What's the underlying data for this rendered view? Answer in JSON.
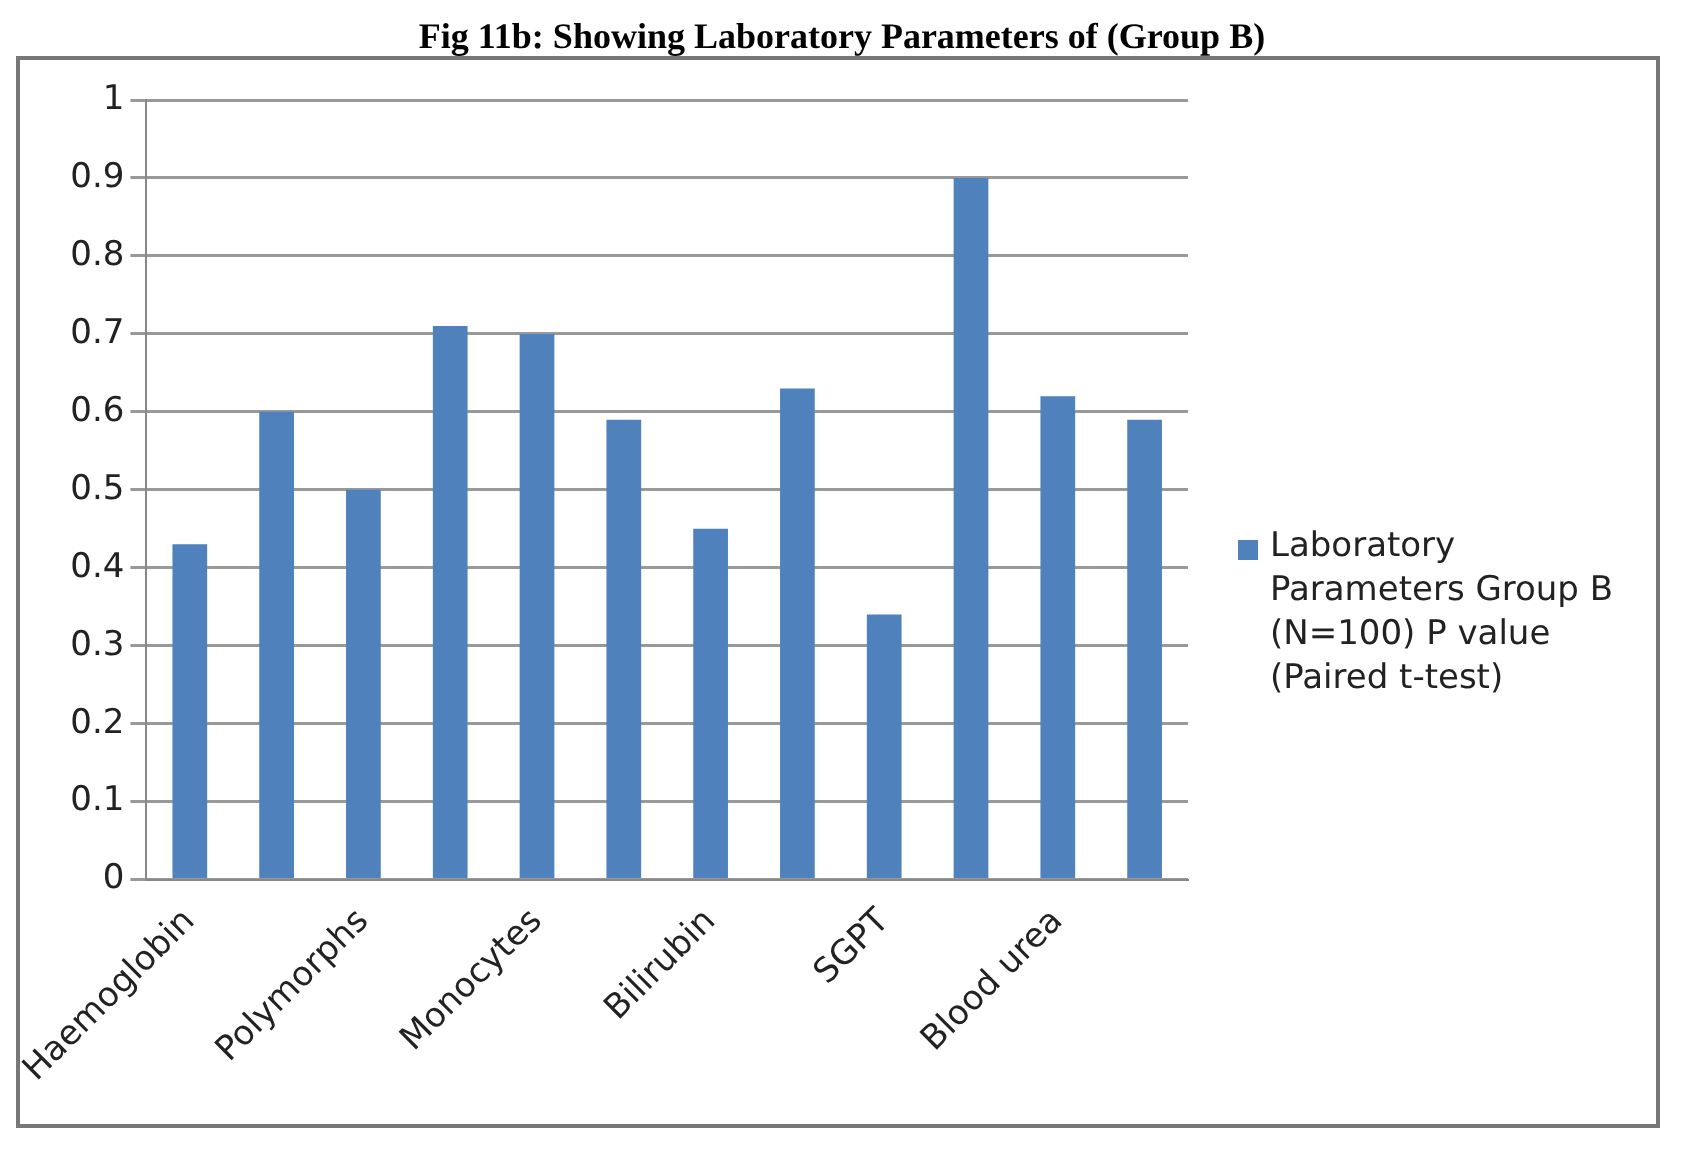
{
  "chart_data": {
    "type": "bar",
    "title": "Fig 11b: Showing Laboratory Parameters of (Group B)",
    "categories": [
      "Haemoglobin",
      null,
      "Polymorphs",
      null,
      "Monocytes",
      null,
      "Bilirubin",
      null,
      "SGPT",
      null,
      "Blood urea",
      null
    ],
    "series": [
      {
        "name": "Laboratory Parameters Group B (N=100) P value (Paired t-test)",
        "color": "#4f81bd",
        "values": [
          0.43,
          0.6,
          0.5,
          0.71,
          0.7,
          0.59,
          0.45,
          0.63,
          0.34,
          0.9,
          0.62,
          0.59
        ]
      }
    ],
    "ylim": [
      0,
      1
    ],
    "yticks": [
      0,
      0.1,
      0.2,
      0.3,
      0.4,
      0.5,
      0.6,
      0.7,
      0.8,
      0.9,
      1
    ],
    "grid": "y",
    "legend": "right"
  }
}
